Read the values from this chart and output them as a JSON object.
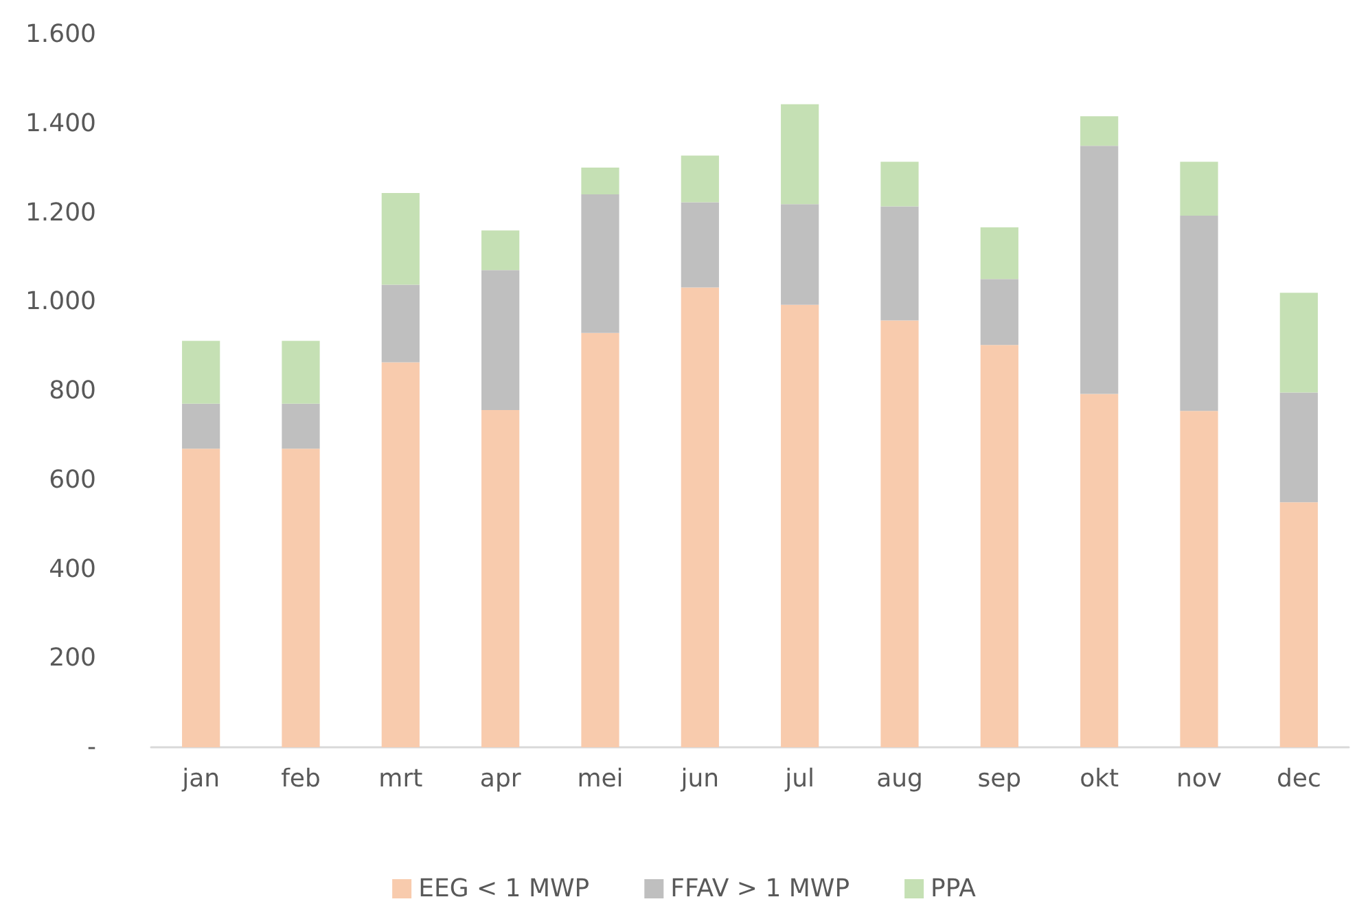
{
  "chart_data": {
    "type": "bar",
    "stacked": true,
    "categories": [
      "jan",
      "feb",
      "mrt",
      "apr",
      "mei",
      "jun",
      "jul",
      "aug",
      "sep",
      "okt",
      "nov",
      "dec"
    ],
    "series": [
      {
        "name": "EEG < 1 MWP",
        "color": "#f8cbad",
        "values": [
          670,
          670,
          864,
          757,
          930,
          1032,
          993,
          958,
          903,
          793,
          755,
          550
        ]
      },
      {
        "name": "FFAV > 1 MWP",
        "color": "#bfbfbf",
        "values": [
          101,
          101,
          174,
          314,
          311,
          191,
          226,
          256,
          148,
          557,
          438,
          246
        ]
      },
      {
        "name": "PPA",
        "color": "#c5e0b4",
        "values": [
          141,
          141,
          206,
          89,
          60,
          105,
          224,
          100,
          116,
          66,
          121,
          224
        ]
      }
    ],
    "ylim": [
      0,
      1600
    ],
    "yticks": [
      {
        "value": 0,
        "label": "-"
      },
      {
        "value": 200,
        "label": "200"
      },
      {
        "value": 400,
        "label": "400"
      },
      {
        "value": 600,
        "label": "600"
      },
      {
        "value": 800,
        "label": "800"
      },
      {
        "value": 1000,
        "label": "1.000"
      },
      {
        "value": 1200,
        "label": "1.200"
      },
      {
        "value": 1400,
        "label": "1.400"
      },
      {
        "value": 1600,
        "label": "1.600"
      }
    ],
    "grid": false,
    "legend": "bottom"
  }
}
